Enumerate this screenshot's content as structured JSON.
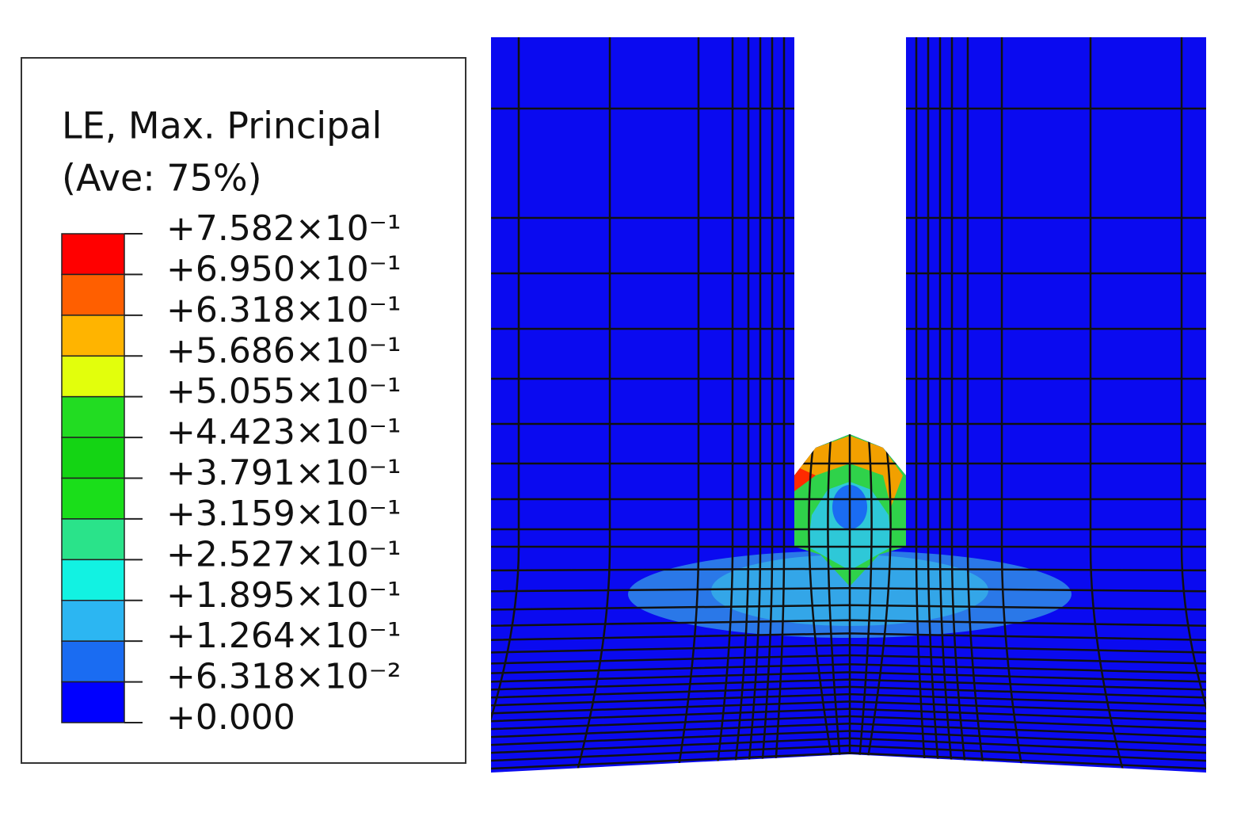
{
  "legend": {
    "title": [
      "LE, Max. Principal",
      "(Ave: 75%)"
    ],
    "levels": [
      "+7.582×10⁻¹",
      "+6.950×10⁻¹",
      "+6.318×10⁻¹",
      "+5.686×10⁻¹",
      "+5.055×10⁻¹",
      "+4.423×10⁻¹",
      "+3.791×10⁻¹",
      "+3.159×10⁻¹",
      "+2.527×10⁻¹",
      "+1.895×10⁻¹",
      "+1.264×10⁻¹",
      "+6.318×10⁻²",
      "+0.000"
    ],
    "colors": [
      "#ff0000",
      "#ff5f00",
      "#ffb400",
      "#e2ff0c",
      "#22dc22",
      "#14d414",
      "#1ade1a",
      "#2ae38a",
      "#12f2e2",
      "#2cb6f2",
      "#1a6cf2",
      "#0000ff"
    ]
  }
}
